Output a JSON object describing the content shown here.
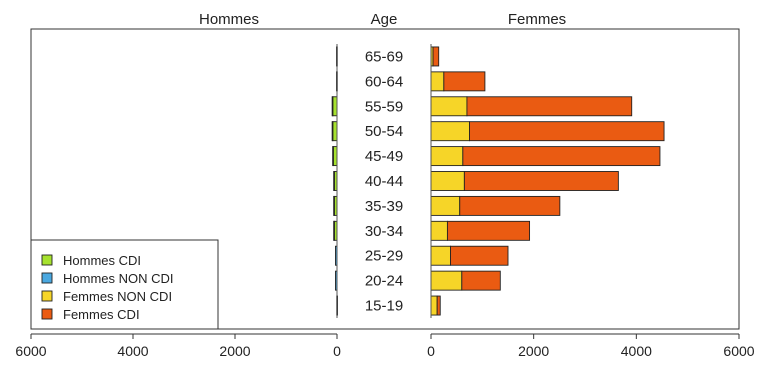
{
  "chart_data": {
    "type": "bar",
    "orientation": "horizontal",
    "layout": "population-pyramid",
    "headers": {
      "left": "Hommes",
      "center": "Age",
      "right": "Femmes"
    },
    "categories": [
      "15-19",
      "20-24",
      "25-29",
      "30-34",
      "35-39",
      "40-44",
      "45-49",
      "50-54",
      "55-59",
      "60-64",
      "65-69"
    ],
    "left_panel": {
      "xlim": [
        6000,
        0
      ],
      "ticks": [
        "6000",
        "4000",
        "2000",
        "0"
      ],
      "series": [
        {
          "name": "Hommes CDI",
          "color": "#a6e22e",
          "values": [
            0,
            0,
            0,
            60,
            60,
            60,
            80,
            90,
            90,
            0,
            0
          ]
        },
        {
          "name": "Hommes NON CDI",
          "color": "#4aa8e0",
          "values": [
            5,
            30,
            30,
            5,
            5,
            5,
            5,
            5,
            5,
            10,
            10
          ]
        }
      ]
    },
    "right_panel": {
      "xlim": [
        0,
        6000
      ],
      "ticks": [
        "0",
        "2000",
        "4000",
        "6000"
      ],
      "series": [
        {
          "name": "Femmes NON CDI",
          "color": "#f6d528",
          "values": [
            120,
            600,
            380,
            320,
            560,
            650,
            620,
            750,
            700,
            250,
            40
          ]
        },
        {
          "name": "Femmes CDI",
          "color": "#ea5b12",
          "values": [
            60,
            750,
            1120,
            1600,
            1950,
            3000,
            3840,
            3790,
            3210,
            800,
            110
          ]
        }
      ]
    },
    "legend": {
      "position": "bottom-left",
      "entries": [
        {
          "label": "Hommes CDI",
          "color": "#a6e22e"
        },
        {
          "label": "Hommes NON CDI",
          "color": "#4aa8e0"
        },
        {
          "label": "Femmes NON CDI",
          "color": "#f6d528"
        },
        {
          "label": "Femmes CDI",
          "color": "#ea5b12"
        }
      ]
    }
  }
}
